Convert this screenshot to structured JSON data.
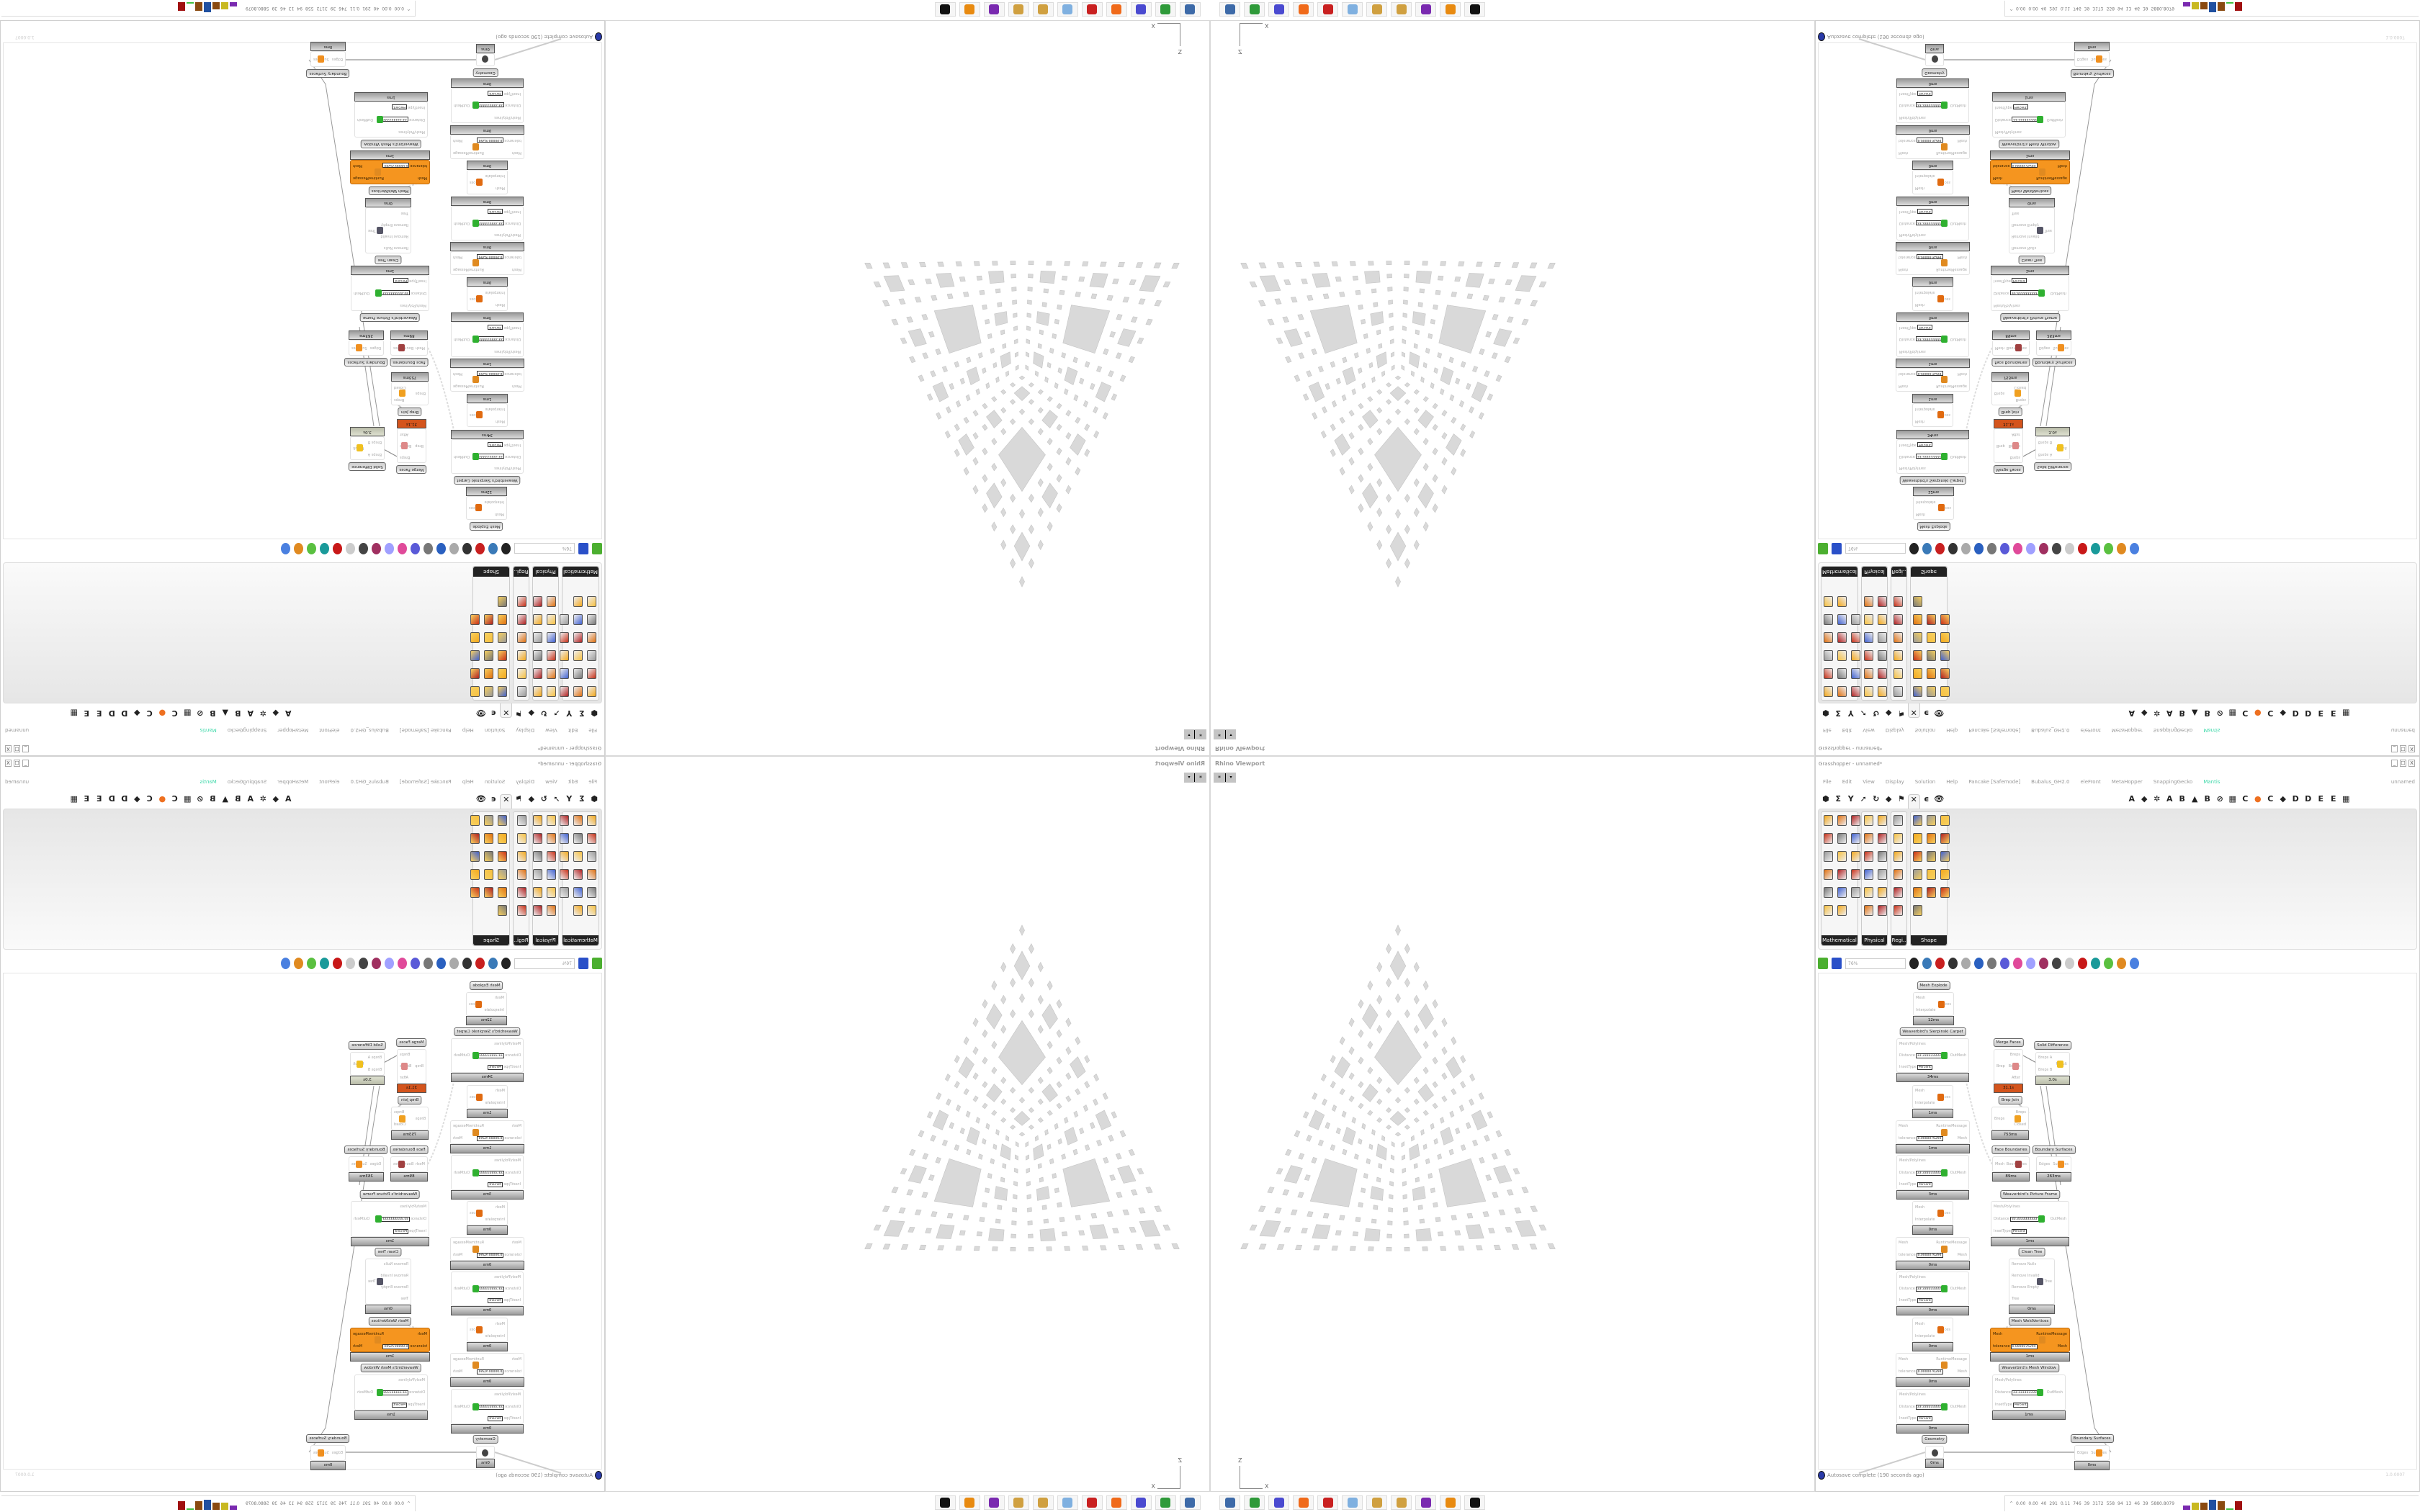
{
  "rhino": {
    "title": "Rhino Viewport",
    "tab_label": "*",
    "tab_dropdown": "▾",
    "axis_x": "X",
    "axis_z": "Z",
    "fill_color": "#d9d9d9"
  },
  "gh": {
    "title": "Grasshopper - unnamed*",
    "window_buttons": [
      "_",
      "☐",
      "X"
    ],
    "menu": [
      "File",
      "Edit",
      "View",
      "Display",
      "Solution",
      "Help",
      "Pancake [Safemode]",
      "Bubalus_GH2.0",
      "eleFront",
      "MetaHopper",
      "SnappingGecko",
      "Mantis"
    ],
    "menu_accent": "#3bd8a8",
    "doc_name": "unnamed",
    "tabs_left": [
      "⬢",
      "Σ",
      "Y",
      "➚",
      "↻",
      "◆",
      "⚑",
      "✕",
      "ϵ",
      "👁"
    ],
    "tabs_right": [
      "A",
      "◆",
      "✲",
      "A",
      "B",
      "▲",
      "B",
      "⊘",
      "▦",
      "C",
      "●",
      "C",
      "◆",
      "D",
      "D",
      "E",
      "E",
      "▦"
    ],
    "selected_tab": 7,
    "panels": [
      {
        "label": "Mathematical",
        "cols": 3,
        "count": 17
      },
      {
        "label": "Physical",
        "cols": 2,
        "count": 12
      },
      {
        "label": "Regi..",
        "cols": 1,
        "count": 6
      },
      {
        "label": "Shape",
        "cols": 3,
        "count": 16
      }
    ],
    "zoom": "76%",
    "nodes": [
      {
        "label": "Mesh Explode",
        "inputs": [
          {
            "name": "Mesh"
          },
          {
            "name": "Interpolate"
          }
        ],
        "outputs": [
          "Faces"
        ],
        "time": "12ms",
        "icon": "mesh-explode"
      },
      {
        "label": "Weaverbird's Sierpinski Carpet",
        "inputs": [
          {
            "name": "Mesh/Polylines"
          },
          {
            "name": "Distance",
            "value": "33.3333333333"
          },
          {
            "name": "InsetType",
            "value": "Percent"
          }
        ],
        "outputs": [
          "OutMesh"
        ],
        "time": "34ms",
        "icon": "weaverbird"
      },
      {
        "label": "",
        "inputs": [
          {
            "name": "Mesh"
          },
          {
            "name": "Interpolate"
          }
        ],
        "outputs": [
          "Faces"
        ],
        "time": "1ms",
        "icon": "mesh-explode"
      },
      {
        "label": "",
        "inputs": [
          {
            "name": "Mesh"
          },
          {
            "name": "tolerance",
            "value": "0.0000076294"
          }
        ],
        "outputs": [
          "RuntimeMessage",
          "Mesh"
        ],
        "time": "1ms",
        "icon": "weld"
      },
      {
        "label": "",
        "inputs": [
          {
            "name": "Mesh/Polylines"
          },
          {
            "name": "Distance",
            "value": "33.3333333333"
          },
          {
            "name": "InsetType",
            "value": "Percent"
          }
        ],
        "outputs": [
          "OutMesh"
        ],
        "time": "3ms",
        "icon": "weaverbird"
      },
      {
        "label": "",
        "inputs": [
          {
            "name": "Mesh"
          },
          {
            "name": "Interpolate"
          }
        ],
        "outputs": [
          "Faces"
        ],
        "time": "0ms",
        "icon": "mesh-explode"
      },
      {
        "label": "",
        "inputs": [
          {
            "name": "Mesh"
          },
          {
            "name": "tolerance",
            "value": "0.0000076294"
          }
        ],
        "outputs": [
          "RuntimeMessage",
          "Mesh"
        ],
        "time": "0ms",
        "icon": "weld"
      },
      {
        "label": "",
        "inputs": [
          {
            "name": "Mesh/Polylines"
          },
          {
            "name": "Distance",
            "value": "33.3333333333"
          },
          {
            "name": "InsetType",
            "value": "Percent"
          }
        ],
        "outputs": [
          "OutMesh"
        ],
        "time": "0ms",
        "icon": "weaverbird"
      },
      {
        "label": "",
        "inputs": [
          {
            "name": "Mesh"
          },
          {
            "name": "Interpolate"
          }
        ],
        "outputs": [
          "Faces"
        ],
        "time": "0ms",
        "icon": "mesh-explode"
      },
      {
        "label": "",
        "inputs": [
          {
            "name": "Mesh"
          },
          {
            "name": "tolerance",
            "value": "0.0000076294"
          }
        ],
        "outputs": [
          "RuntimeMessage",
          "Mesh"
        ],
        "time": "0ms",
        "icon": "weld"
      },
      {
        "label": "",
        "inputs": [
          {
            "name": "Mesh/Polylines"
          },
          {
            "name": "Distance",
            "value": "33.3333333333"
          },
          {
            "name": "InsetType",
            "value": "Percent"
          }
        ],
        "outputs": [
          "OutMesh"
        ],
        "time": "0ms",
        "icon": "weaverbird"
      },
      {
        "label": "Geometry",
        "inputs": [],
        "outputs": [],
        "time": "0ms",
        "icon": "geometry"
      },
      {
        "label": "Merge Faces",
        "inputs": [
          {
            "name": "Brep"
          }
        ],
        "outputs": [
          "Breps",
          "Before",
          "After"
        ],
        "time": "31.1s",
        "icon": "merge",
        "footer": "red"
      },
      {
        "label": "Solid Difference",
        "inputs": [
          {
            "name": "Breps A"
          },
          {
            "name": "Breps B"
          }
        ],
        "outputs": [
          "Result"
        ],
        "time": "3.0s",
        "icon": "solid-difference",
        "footer": "sage"
      },
      {
        "label": "Brep Join",
        "inputs": [
          {
            "name": "Breps"
          }
        ],
        "outputs": [
          "Breps",
          "Closed"
        ],
        "time": "753ms",
        "icon": "brep-join"
      },
      {
        "label": "Face Boundaries",
        "inputs": [
          {
            "name": "Mesh"
          }
        ],
        "outputs": [
          "Boundaries"
        ],
        "time": "89ms",
        "icon": "face-boundaries"
      },
      {
        "label": "Boundary Surfaces",
        "inputs": [
          {
            "name": "Edges"
          }
        ],
        "outputs": [
          "Surfaces"
        ],
        "time": "263ms",
        "icon": "boundary-surfaces"
      },
      {
        "label": "Weaverbird's Picture Frame",
        "inputs": [
          {
            "name": "Mesh/Polylines"
          },
          {
            "name": "Distance",
            "value": "33.3333333333"
          },
          {
            "name": "InsetType",
            "value": "Percent"
          }
        ],
        "outputs": [
          "OutMesh"
        ],
        "time": "1ms",
        "icon": "weaverbird"
      },
      {
        "label": "Clean Tree",
        "inputs": [
          {
            "name": "Remove Nulls"
          },
          {
            "name": "Remove Invalid"
          },
          {
            "name": "Remove Empty"
          },
          {
            "name": "Tree"
          }
        ],
        "outputs": [
          "Tree"
        ],
        "time": "0ms",
        "icon": "clean-tree"
      },
      {
        "label": "Mesh WeldVertices",
        "inputs": [
          {
            "name": "Mesh"
          },
          {
            "name": "tolerance",
            "value": "0.0000076294"
          }
        ],
        "outputs": [
          "RuntimeMessage",
          "Mesh"
        ],
        "time": "1ms",
        "icon": "weld",
        "body": "orange"
      },
      {
        "label": "Weaverbird's Mesh Window",
        "inputs": [
          {
            "name": "Mesh/Polylines"
          },
          {
            "name": "Distance",
            "value": "33.3333333333"
          },
          {
            "name": "InsetType",
            "value": "Percent"
          }
        ],
        "outputs": [
          "OutMesh"
        ],
        "time": "1ms",
        "icon": "weaverbird"
      },
      {
        "label": "Boundary Surfaces",
        "inputs": [
          {
            "name": "Edges"
          }
        ],
        "outputs": [
          "Surfaces"
        ],
        "time": "0ms",
        "icon": "boundary-surfaces"
      }
    ],
    "status": "Autosave complete (190 seconds ago)",
    "version": "1.0.0007"
  },
  "taskbar": {
    "apps": [
      "remote-desktop-icon",
      "terminal-icon",
      "save64-icon",
      "firefox-icon",
      "settings-icon",
      "calculator-icon",
      "paint-icon",
      "paint-icon",
      "discord-icon",
      "blender-icon",
      "rhino-icon"
    ],
    "app_colors": [
      "#3d6aa8",
      "#2f9a3a",
      "#4a4ad0",
      "#f06a1a",
      "#c92020",
      "#7fb0e0",
      "#d0a040",
      "#d0a040",
      "#7a2ab0",
      "#e88a10",
      "#111111"
    ],
    "sys_numbers": [
      "^",
      "0.00",
      "0.00",
      "40",
      "291",
      "0.11",
      "746",
      "39",
      "3172",
      "558",
      "94",
      "13",
      "46",
      "39",
      "5880.8079"
    ]
  }
}
